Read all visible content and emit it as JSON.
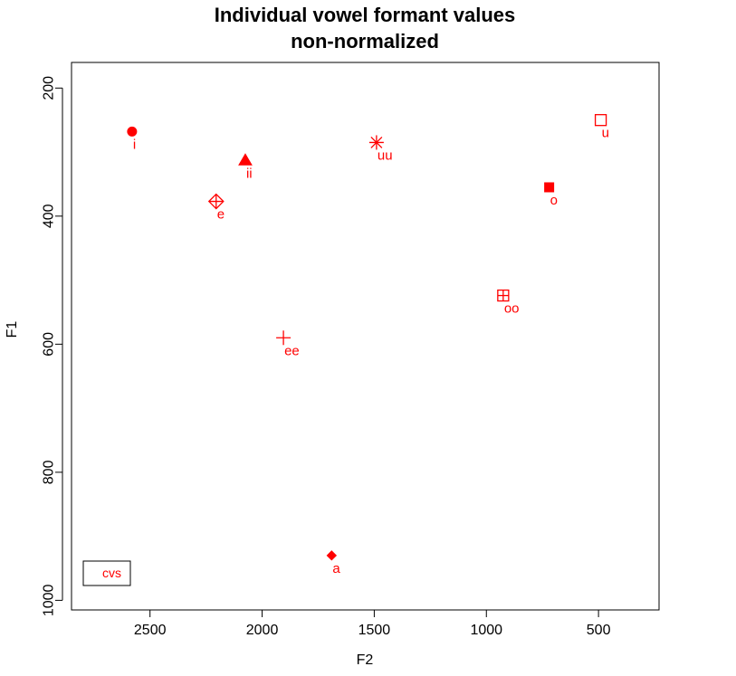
{
  "chart_data": {
    "type": "scatter",
    "title": "Individual vowel formant values",
    "subtitle": "non-normalized",
    "xlabel": "F2",
    "ylabel": "F1",
    "x_reversed": true,
    "y_reversed": true,
    "xlim": [
      2850,
      230
    ],
    "ylim": [
      1015,
      160
    ],
    "x_ticks": [
      2500,
      2000,
      1500,
      1000,
      500
    ],
    "y_ticks": [
      200,
      400,
      600,
      800,
      1000
    ],
    "x_tick_labels": [
      "2500",
      "2000",
      "1500",
      "1000",
      "500"
    ],
    "y_tick_labels": [
      "200",
      "400",
      "600",
      "800",
      "1000"
    ],
    "grid": false,
    "legend": {
      "position": "bottom-left",
      "entries": [
        "cvs"
      ]
    },
    "color": "#ff0000",
    "series": [
      {
        "name": "cvs",
        "points": [
          {
            "label": "i",
            "x": 2580,
            "y": 268,
            "marker": "circle-filled"
          },
          {
            "label": "ii",
            "x": 2075,
            "y": 313,
            "marker": "triangle-filled"
          },
          {
            "label": "e",
            "x": 2205,
            "y": 377,
            "marker": "diamond-plus"
          },
          {
            "label": "ee",
            "x": 1905,
            "y": 590,
            "marker": "plus"
          },
          {
            "label": "a",
            "x": 1690,
            "y": 930,
            "marker": "diamond-filled"
          },
          {
            "label": "uu",
            "x": 1490,
            "y": 285,
            "marker": "asterisk"
          },
          {
            "label": "oo",
            "x": 925,
            "y": 524,
            "marker": "square-plus"
          },
          {
            "label": "o",
            "x": 720,
            "y": 355,
            "marker": "square-filled"
          },
          {
            "label": "u",
            "x": 490,
            "y": 250,
            "marker": "square-open"
          }
        ]
      }
    ]
  }
}
